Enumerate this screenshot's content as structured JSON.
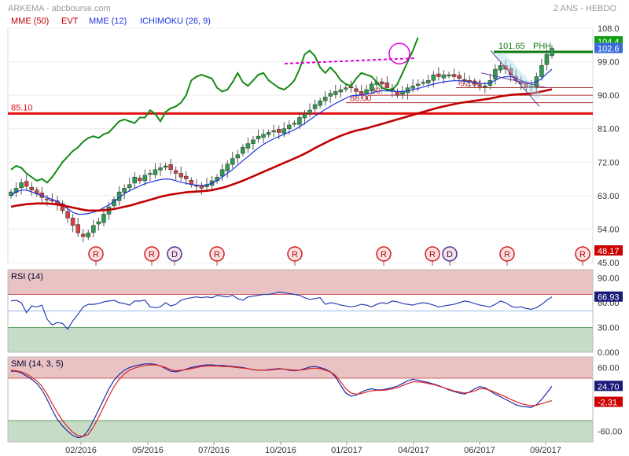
{
  "header": {
    "source": "ARKEMA - abcbourse.com",
    "period": "2 ANS - HEBDO",
    "indicators": [
      {
        "label": "MME (50)",
        "color": "#cc0000"
      },
      {
        "label": "EVT",
        "color": "#cc0000"
      },
      {
        "label": "MME (12)",
        "color": "#0000cc"
      },
      {
        "label": "ICHIMOKU (26, 9)",
        "color": "#0000cc"
      }
    ]
  },
  "colors": {
    "up": "#2e9a4e",
    "down": "#d24040",
    "mme50": "#c00000",
    "mme12": "#1b34e0",
    "ichimoku": "#138a13",
    "rsi": "#2a3fb5",
    "smi": "#1b2aa8",
    "smi_signal": "#e02020",
    "zone_red": "#e9c3c3",
    "zone_green": "#c6dcc6",
    "support": "#e31010"
  },
  "chart_data": [
    {
      "type": "candlestick",
      "title": "ARKEMA",
      "ylim": [
        45,
        108
      ],
      "y_ticks": [
        "108.0",
        "99.00",
        "90.00",
        "81.00",
        "72.00",
        "63.00",
        "54.00",
        "45.00"
      ],
      "x_ticks": [
        "02/2016",
        "05/2016",
        "07/2016",
        "10/2016",
        "01/2017",
        "04/2017",
        "06/2017",
        "09/2017"
      ],
      "price_path": [
        64.0,
        65.0,
        66.5,
        65.5,
        64.5,
        63.5,
        62.5,
        62.0,
        61.5,
        60.5,
        59.0,
        57.0,
        55.0,
        53.0,
        52.0,
        53.0,
        55.0,
        56.0,
        58.0,
        60.0,
        62.0,
        64.0,
        65.0,
        66.0,
        68.0,
        67.0,
        68.5,
        69.0,
        70.0,
        70.5,
        71.0,
        70.0,
        69.0,
        68.0,
        67.5,
        66.0,
        65.5,
        65.0,
        66.0,
        67.0,
        68.0,
        70.0,
        71.5,
        73.0,
        74.0,
        76.0,
        77.0,
        78.0,
        79.0,
        79.5,
        80.0,
        80.5,
        80.0,
        81.0,
        82.0,
        82.5,
        84.0,
        85.0,
        86.0,
        87.5,
        88.5,
        89.5,
        90.5,
        91.0,
        91.5,
        92.0,
        92.0,
        91.0,
        90.0,
        91.5,
        93.0,
        93.5,
        93.0,
        92.0,
        91.0,
        90.0,
        91.0,
        92.0,
        92.5,
        93.0,
        93.5,
        94.0,
        95.5,
        95.0,
        95.5,
        95.5,
        95.0,
        94.5,
        94.0,
        93.5,
        93.0,
        92.5,
        92.5,
        94.0,
        97.0,
        98.0,
        97.0,
        95.5,
        94.0,
        93.0,
        92.0,
        92.5,
        95.0,
        98.0,
        101.0,
        102.6
      ],
      "series": [
        {
          "name": "MME (12)",
          "values": [
            63.0,
            64.0,
            64.5,
            64.5,
            64.0,
            63.5,
            63.0,
            62.5,
            62.0,
            61.5,
            60.5,
            59.5,
            58.5,
            58.0,
            58.0,
            58.2,
            58.5,
            59.0,
            59.8,
            60.5,
            61.5,
            62.5,
            63.5,
            64.3,
            65.0,
            65.6,
            66.2,
            66.6,
            67.0,
            67.3,
            67.5,
            67.4,
            67.0,
            66.6,
            66.3,
            66.0,
            65.8,
            65.7,
            65.9,
            66.3,
            67.0,
            68.0,
            69.0,
            70.0,
            71.2,
            72.4,
            73.5,
            74.7,
            75.8,
            76.8,
            77.6,
            78.3,
            78.9,
            79.5,
            80.1,
            80.7,
            81.5,
            82.4,
            83.4,
            84.4,
            85.3,
            86.2,
            87.0,
            87.8,
            88.5,
            89.2,
            89.8,
            90.0,
            90.0,
            90.3,
            90.6,
            91.0,
            91.2,
            91.2,
            91.1,
            91.0,
            91.0,
            91.2,
            91.5,
            91.8,
            92.2,
            92.6,
            93.0,
            93.3,
            93.6,
            93.8,
            93.9,
            93.9,
            93.8,
            93.6,
            93.4,
            93.2,
            93.1,
            93.3,
            94.0,
            94.7,
            95.0,
            95.0,
            94.6,
            94.0,
            93.5,
            93.2,
            93.6,
            94.5,
            95.8,
            97.0
          ]
        },
        {
          "name": "MME (50)",
          "values": [
            60.0,
            60.3,
            60.5,
            60.7,
            60.8,
            60.9,
            60.9,
            60.9,
            60.8,
            60.6,
            60.4,
            60.1,
            59.8,
            59.5,
            59.2,
            59.0,
            59.0,
            59.0,
            59.1,
            59.2,
            59.4,
            59.7,
            60.0,
            60.3,
            60.7,
            61.1,
            61.5,
            61.9,
            62.3,
            62.7,
            63.0,
            63.3,
            63.5,
            63.7,
            63.9,
            64.0,
            64.1,
            64.2,
            64.3,
            64.5,
            64.8,
            65.1,
            65.5,
            66.0,
            66.5,
            67.0,
            67.6,
            68.2,
            68.8,
            69.4,
            70.0,
            70.6,
            71.2,
            71.8,
            72.4,
            73.0,
            73.6,
            74.3,
            75.0,
            75.8,
            76.5,
            77.2,
            77.9,
            78.5,
            79.1,
            79.6,
            80.1,
            80.5,
            80.8,
            81.1,
            81.5,
            81.9,
            82.3,
            82.7,
            83.1,
            83.5,
            83.9,
            84.3,
            84.7,
            85.1,
            85.5,
            85.9,
            86.3,
            86.7,
            87.0,
            87.3,
            87.6,
            87.9,
            88.1,
            88.3,
            88.5,
            88.7,
            88.9,
            89.1,
            89.4,
            89.7,
            89.9,
            90.1,
            90.2,
            90.3,
            90.4,
            90.5,
            90.7,
            91.0,
            91.3,
            91.6
          ]
        },
        {
          "name": "ICHIMOKU (26, 9)",
          "values": [
            70.0,
            71.0,
            70.5,
            69.0,
            68.0,
            67.0,
            67.5,
            66.5,
            68.0,
            70.0,
            72.0,
            73.5,
            75.0,
            76.0,
            77.5,
            78.5,
            79.0,
            78.5,
            79.5,
            80.0,
            81.5,
            83.0,
            83.5,
            83.0,
            82.5,
            84.0,
            84.0,
            86.0,
            85.0,
            83.0,
            85.5,
            86.5,
            87.0,
            88.0,
            90.0,
            94.0,
            95.0,
            95.5,
            95.0,
            94.5,
            92.0,
            91.0,
            91.5,
            93.5,
            96.0,
            93.5,
            92.5,
            94.0,
            95.5,
            96.0,
            94.0,
            93.0,
            92.0,
            91.5,
            92.5,
            94.0,
            97.0,
            101.0,
            102.0,
            100.5,
            97.5,
            96.0,
            97.5,
            96.0,
            94.0,
            93.0,
            92.5,
            94.5,
            96.0,
            95.5,
            95.0,
            93.5,
            92.0,
            91.5,
            91.5,
            93.0,
            96.0,
            99.0,
            102.0,
            105.5
          ]
        }
      ],
      "horizontal_lines": [
        {
          "label": "85.10",
          "value": 85.1
        },
        {
          "label": "101.65",
          "value": 101.65
        },
        {
          "label": "92.04",
          "value": 92.04
        },
        {
          "label": "90.",
          "value": 90.0
        },
        {
          "label": "88.00",
          "value": 88.0
        }
      ],
      "annotations": [
        "PHH"
      ],
      "price_badges": [
        {
          "label": "104.4",
          "color": "#12a012"
        },
        {
          "label": "102.6",
          "color": "#3a6bdb"
        },
        {
          "label": "48.17",
          "color": "#cc0000"
        }
      ],
      "events": [
        {
          "label": "R",
          "date": "01/2016"
        },
        {
          "label": "R",
          "date": "04/2016"
        },
        {
          "label": "D",
          "date": "05/2016"
        },
        {
          "label": "R",
          "date": "07/2016"
        },
        {
          "label": "R",
          "date": "10/2016"
        },
        {
          "label": "R",
          "date": "03/2017"
        },
        {
          "label": "R",
          "date": "05/2017"
        },
        {
          "label": "D",
          "date": "05/2017"
        },
        {
          "label": "R",
          "date": "07/2017"
        },
        {
          "label": "R",
          "date": "10/2017"
        }
      ]
    },
    {
      "type": "line",
      "title": "RSI (14)",
      "ylim": [
        0,
        100
      ],
      "y_ticks": [
        "90.00",
        "60.00",
        "30.00",
        "0.000"
      ],
      "zones": {
        "upper": 70,
        "lower": 30,
        "mid": 50
      },
      "current": "66.93",
      "series": [
        {
          "name": "RSI (14)",
          "values": [
            62,
            63,
            60,
            48,
            56,
            55,
            57,
            40,
            33,
            36,
            35,
            28,
            38,
            46,
            55,
            58,
            58,
            59,
            61,
            62,
            63,
            60,
            59,
            57,
            62,
            62,
            63,
            55,
            54,
            55,
            60,
            56,
            58,
            63,
            65,
            66,
            67,
            66,
            67,
            66,
            69,
            68,
            67,
            69,
            65,
            63,
            67,
            68,
            69,
            70,
            70,
            71,
            73,
            72,
            71,
            70,
            69,
            66,
            64,
            65,
            66,
            58,
            60,
            59,
            57,
            56,
            55,
            56,
            58,
            57,
            55,
            58,
            60,
            59,
            62,
            61,
            59,
            58,
            57,
            59,
            60,
            59,
            57,
            55,
            56,
            57,
            58,
            60,
            62,
            61,
            59,
            57,
            56,
            55,
            58,
            62,
            60,
            56,
            54,
            55,
            53,
            52,
            54,
            58,
            63,
            67
          ]
        }
      ]
    },
    {
      "type": "line",
      "title": "SMI (14, 3, 5)",
      "ylim": [
        -80,
        80
      ],
      "y_ticks": [
        "60.00",
        "-60.00"
      ],
      "zones": {
        "upper": 40,
        "lower": -40
      },
      "current": [
        "24.70",
        "-2.31"
      ],
      "series": [
        {
          "name": "SMI (14, 3, 5)",
          "values": [
            53,
            53,
            50,
            44,
            38,
            30,
            18,
            0,
            -20,
            -38,
            -50,
            -60,
            -68,
            -72,
            -70,
            -58,
            -40,
            -20,
            0,
            20,
            36,
            47,
            55,
            60,
            63,
            65,
            67,
            67,
            66,
            63,
            58,
            53,
            52,
            54,
            57,
            60,
            62,
            64,
            65,
            65,
            64,
            64,
            63,
            62,
            61,
            60,
            58,
            56,
            55,
            55,
            56,
            57,
            58,
            57,
            55,
            54,
            55,
            58,
            61,
            62,
            60,
            57,
            52,
            42,
            26,
            12,
            6,
            8,
            14,
            18,
            20,
            18,
            18,
            20,
            22,
            25,
            30,
            35,
            38,
            36,
            34,
            32,
            29,
            26,
            22,
            18,
            15,
            12,
            10,
            14,
            20,
            24,
            22,
            16,
            10,
            5,
            0,
            -5,
            -10,
            -13,
            -14,
            -15,
            -10,
            0,
            12,
            24.7
          ]
        },
        {
          "name": "Signal",
          "values": [
            55,
            54,
            52,
            48,
            42,
            35,
            25,
            10,
            -8,
            -25,
            -40,
            -52,
            -62,
            -68,
            -70,
            -66,
            -52,
            -34,
            -14,
            6,
            24,
            38,
            48,
            55,
            59,
            62,
            64,
            65,
            65,
            63,
            60,
            56,
            54,
            55,
            56,
            58,
            60,
            62,
            63,
            63,
            63,
            62,
            62,
            61,
            60,
            59,
            58,
            56,
            55,
            55,
            55,
            56,
            57,
            57,
            56,
            55,
            55,
            56,
            58,
            59,
            58,
            55,
            52,
            45,
            33,
            20,
            12,
            10,
            11,
            14,
            16,
            17,
            17,
            18,
            20,
            22,
            26,
            30,
            33,
            33,
            32,
            30,
            28,
            25,
            22,
            19,
            16,
            14,
            12,
            13,
            16,
            20,
            20,
            17,
            13,
            9,
            5,
            0,
            -4,
            -8,
            -10,
            -12,
            -11,
            -8,
            -5,
            -2.31
          ]
        }
      ]
    }
  ]
}
